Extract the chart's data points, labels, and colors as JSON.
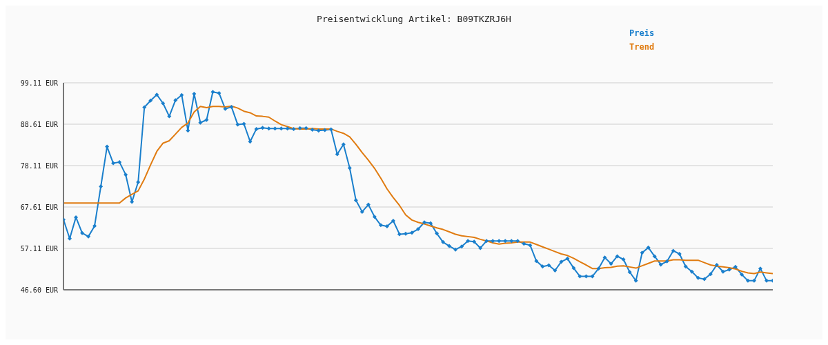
{
  "chart_data": {
    "type": "line",
    "title": "Preisentwicklung Artikel: B09TKZRJ6H",
    "categories": [
      null,
      null,
      null,
      null,
      null,
      null,
      null,
      null,
      null,
      null,
      null,
      null,
      null,
      null,
      null,
      null,
      null,
      null,
      null,
      null,
      null,
      null,
      null,
      null,
      null,
      null,
      null,
      null,
      null,
      null,
      null,
      null,
      null,
      null,
      null,
      null,
      null,
      null,
      null,
      null,
      null,
      null,
      null,
      null,
      null,
      null,
      null,
      null,
      null,
      null,
      null,
      null,
      null,
      null,
      null,
      null,
      null,
      null,
      null,
      null,
      null,
      null,
      null,
      null,
      null,
      null,
      null,
      null,
      null,
      null,
      null,
      null,
      null,
      null,
      null,
      null,
      null,
      null,
      null,
      null,
      null,
      null,
      null,
      null,
      null,
      null,
      null,
      null,
      null,
      null,
      null,
      null,
      null,
      null,
      null,
      null,
      null,
      null,
      null,
      null,
      null,
      null,
      null,
      null,
      null,
      null,
      null,
      null,
      null,
      null,
      null,
      null,
      null,
      null,
      null
    ],
    "series": [
      {
        "name": "Preis",
        "color": "#1a7fcc",
        "marker": "diamond",
        "values": [
          64.4,
          59.6,
          65.0,
          61.0,
          60.1,
          62.8,
          72.8,
          82.9,
          78.7,
          79.0,
          75.8,
          68.9,
          73.9,
          92.9,
          94.6,
          96.1,
          93.9,
          90.6,
          94.7,
          96.0,
          87.0,
          96.3,
          89.0,
          89.7,
          96.8,
          96.5,
          92.5,
          93.0,
          88.5,
          88.7,
          84.2,
          87.4,
          87.7,
          87.5,
          87.5,
          87.5,
          87.5,
          87.4,
          87.6,
          87.6,
          87.2,
          87.0,
          87.1,
          87.3,
          81.0,
          83.5,
          77.5,
          69.3,
          66.4,
          68.2,
          65.1,
          63.0,
          62.7,
          64.1,
          60.7,
          60.8,
          61.1,
          62.0,
          63.7,
          63.5,
          60.9,
          58.7,
          57.7,
          56.8,
          57.6,
          59.0,
          58.8,
          57.2,
          59.0,
          59.0,
          59.0,
          59.0,
          59.0,
          59.0,
          58.3,
          57.9,
          53.9,
          52.5,
          52.8,
          51.5,
          53.7,
          54.5,
          52.1,
          50.0,
          50.0,
          50.0,
          52.0,
          54.8,
          53.2,
          55.1,
          54.3,
          51.1,
          48.9,
          56.0,
          57.3,
          55.1,
          53.0,
          53.8,
          56.5,
          55.7,
          52.5,
          51.2,
          49.6,
          49.3,
          50.6,
          52.9,
          51.2,
          51.7,
          52.4,
          50.5,
          48.9,
          48.9,
          52.0,
          48.9,
          48.9
        ]
      },
      {
        "name": "Trend",
        "color": "#e07b10",
        "marker": "none",
        "values": [
          68.6,
          68.6,
          68.6,
          68.6,
          68.6,
          68.6,
          68.6,
          68.6,
          68.6,
          68.6,
          69.9,
          70.8,
          71.7,
          74.7,
          78.3,
          81.7,
          83.8,
          84.4,
          86.1,
          87.8,
          88.9,
          91.7,
          93.1,
          92.8,
          93.1,
          93.1,
          93.0,
          93.2,
          92.7,
          91.9,
          91.5,
          90.7,
          90.6,
          90.4,
          89.4,
          88.5,
          88.0,
          87.5,
          87.4,
          87.4,
          87.5,
          87.4,
          87.4,
          87.4,
          86.8,
          86.3,
          85.4,
          83.5,
          81.4,
          79.5,
          77.4,
          74.9,
          72.2,
          70.0,
          68.0,
          65.6,
          64.3,
          63.7,
          63.3,
          62.8,
          62.3,
          61.9,
          61.3,
          60.7,
          60.3,
          60.1,
          59.9,
          59.4,
          59.0,
          58.5,
          58.2,
          58.4,
          58.5,
          58.7,
          58.7,
          58.7,
          58.1,
          57.5,
          56.9,
          56.3,
          55.7,
          55.3,
          54.6,
          53.7,
          52.9,
          52.0,
          52.0,
          52.2,
          52.3,
          52.6,
          52.7,
          52.4,
          52.1,
          52.7,
          53.3,
          53.9,
          53.9,
          53.9,
          54.2,
          54.2,
          54.1,
          54.1,
          54.1,
          53.5,
          52.9,
          52.6,
          52.4,
          52.2,
          51.9,
          51.3,
          50.9,
          50.7,
          51.1,
          50.9,
          50.7
        ]
      }
    ],
    "ylim": [
      46.6,
      99.11
    ],
    "yticks": [
      {
        "value": 46.6,
        "label": "46.60 EUR"
      },
      {
        "value": 57.11,
        "label": "57.11 EUR"
      },
      {
        "value": 67.61,
        "label": "67.61 EUR"
      },
      {
        "value": 78.11,
        "label": "78.11 EUR"
      },
      {
        "value": 88.61,
        "label": "88.61 EUR"
      },
      {
        "value": 99.11,
        "label": "99.11 EUR"
      }
    ],
    "grid": "y",
    "legend": "top right",
    "tick_labels": "y"
  }
}
